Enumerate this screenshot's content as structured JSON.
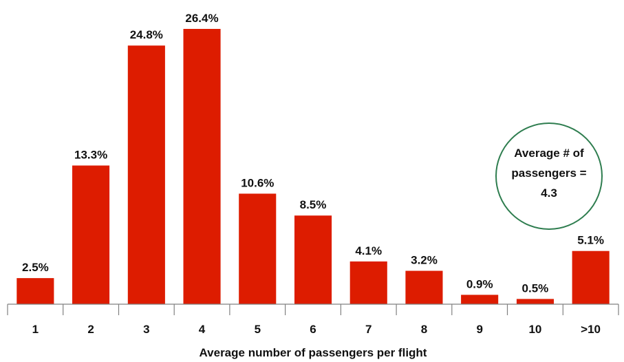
{
  "chart_data": {
    "type": "bar",
    "categories": [
      "1",
      "2",
      "3",
      "4",
      "5",
      "6",
      "7",
      "8",
      "9",
      "10",
      ">10"
    ],
    "values": [
      2.5,
      13.3,
      24.8,
      26.4,
      10.6,
      8.5,
      4.1,
      3.2,
      0.9,
      0.5,
      5.1
    ],
    "value_labels": [
      "2.5%",
      "13.3%",
      "24.8%",
      "26.4%",
      "10.6%",
      "8.5%",
      "4.1%",
      "3.2%",
      "0.9%",
      "0.5%",
      "5.1%"
    ],
    "xlabel": "Average number of passengers per flight",
    "ylabel": "",
    "ylim": [
      0,
      26.4
    ],
    "grid": false,
    "bar_color": "#dd1c00",
    "annotation": {
      "lines": [
        "Average # of",
        "passengers =",
        "4.3"
      ],
      "border_color": "#2e7d4f"
    }
  }
}
